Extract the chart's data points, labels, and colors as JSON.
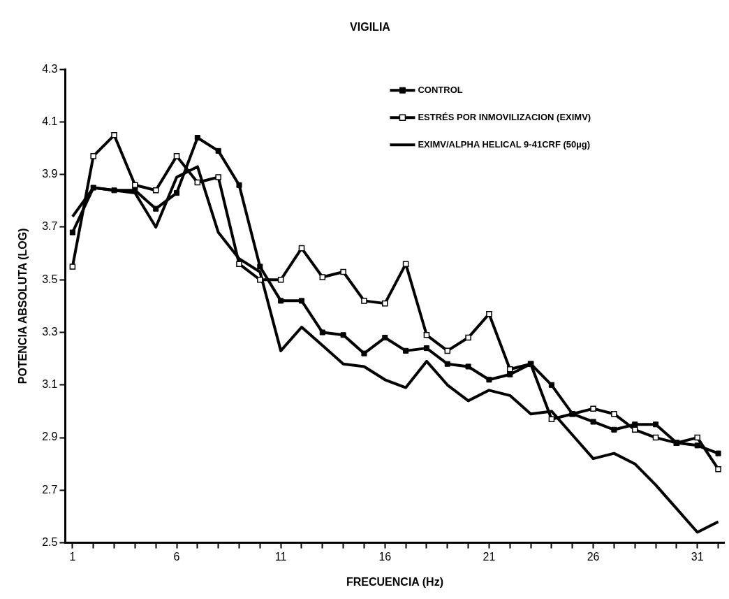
{
  "chart_data": {
    "type": "line",
    "title": "VIGILIA",
    "xlabel": "FRECUENCIA (Hz)",
    "ylabel": "POTENCIA ABSOLUTA (LOG)",
    "x": [
      1,
      2,
      3,
      4,
      5,
      6,
      7,
      8,
      9,
      10,
      11,
      12,
      13,
      14,
      15,
      16,
      17,
      18,
      19,
      20,
      21,
      22,
      23,
      24,
      25,
      26,
      27,
      28,
      29,
      30,
      31,
      32
    ],
    "series": [
      {
        "name": "CONTROL",
        "color": "#000000",
        "marker": "square",
        "values": [
          3.68,
          3.85,
          3.84,
          3.84,
          3.77,
          3.83,
          4.04,
          3.99,
          3.86,
          3.55,
          3.42,
          3.42,
          3.3,
          3.29,
          3.22,
          3.28,
          3.23,
          3.24,
          3.18,
          3.17,
          3.12,
          3.14,
          3.18,
          3.1,
          2.99,
          2.96,
          2.93,
          2.95,
          2.95,
          2.88,
          2.87,
          2.84
        ]
      },
      {
        "name": "ESTRÉS POR INMOVILIZACION (EXIMV)",
        "color": "#000000",
        "marker": "square",
        "values": [
          3.55,
          3.97,
          4.05,
          3.86,
          3.84,
          3.97,
          3.87,
          3.89,
          3.56,
          3.5,
          3.5,
          3.62,
          3.51,
          3.53,
          3.42,
          3.41,
          3.56,
          3.29,
          3.23,
          3.28,
          3.37,
          3.16,
          3.18,
          2.97,
          2.99,
          3.01,
          2.99,
          2.93,
          2.9,
          2.88,
          2.9,
          2.78
        ]
      },
      {
        "name": "EXIMV/ALPHA HELICAL 9-41CRF (50µg)",
        "color": "#000000",
        "marker": "none",
        "values": [
          3.74,
          3.85,
          3.84,
          3.83,
          3.7,
          3.89,
          3.93,
          3.68,
          3.58,
          3.53,
          3.23,
          3.32,
          3.25,
          3.18,
          3.17,
          3.12,
          3.09,
          3.19,
          3.1,
          3.04,
          3.08,
          3.06,
          2.99,
          3.0,
          2.91,
          2.82,
          2.84,
          2.8,
          2.72,
          2.63,
          2.54,
          2.58
        ]
      }
    ],
    "xlim": [
      0.65,
      32.3
    ],
    "xticks": [
      1,
      {
        "value": 2,
        "label": null
      },
      {
        "value": 3,
        "label": null
      },
      {
        "value": 4,
        "label": null
      },
      {
        "value": 5,
        "label": null
      },
      6,
      {
        "value": 7,
        "label": null
      },
      {
        "value": 8,
        "label": null
      },
      {
        "value": 9,
        "label": null
      },
      {
        "value": 10,
        "label": null
      },
      11,
      {
        "value": 12,
        "label": null
      },
      {
        "value": 13,
        "label": null
      },
      {
        "value": 14,
        "label": null
      },
      {
        "value": 15,
        "label": null
      },
      16,
      {
        "value": 17,
        "label": null
      },
      {
        "value": 18,
        "label": null
      },
      {
        "value": 19,
        "label": null
      },
      {
        "value": 20,
        "label": null
      },
      21,
      {
        "value": 22,
        "label": null
      },
      {
        "value": 23,
        "label": null
      },
      {
        "value": 24,
        "label": null
      },
      {
        "value": 25,
        "label": null
      },
      26,
      {
        "value": 27,
        "label": null
      },
      {
        "value": 28,
        "label": null
      },
      {
        "value": 29,
        "label": null
      },
      {
        "value": 30,
        "label": null
      },
      31,
      {
        "value": 32,
        "label": null
      }
    ],
    "ylim": [
      2.5,
      4.3
    ],
    "yticks": [
      {
        "value": 2.5,
        "label": "2.5"
      },
      {
        "value": 2.7,
        "label": "2.7"
      },
      {
        "value": 2.9,
        "label": "2.9"
      },
      {
        "value": 3.1,
        "label": "3.1"
      },
      {
        "value": 3.3,
        "label": "3.3"
      },
      {
        "value": 3.5,
        "label": "3.5"
      },
      {
        "value": 3.7,
        "label": "3.7"
      },
      {
        "value": 3.9,
        "label": "3.9"
      },
      {
        "value": 4.1,
        "label": "4.1"
      },
      {
        "value": 4.3,
        "label": "4.3"
      }
    ],
    "grid": false,
    "legend": "top right",
    "line_style": "solid"
  }
}
